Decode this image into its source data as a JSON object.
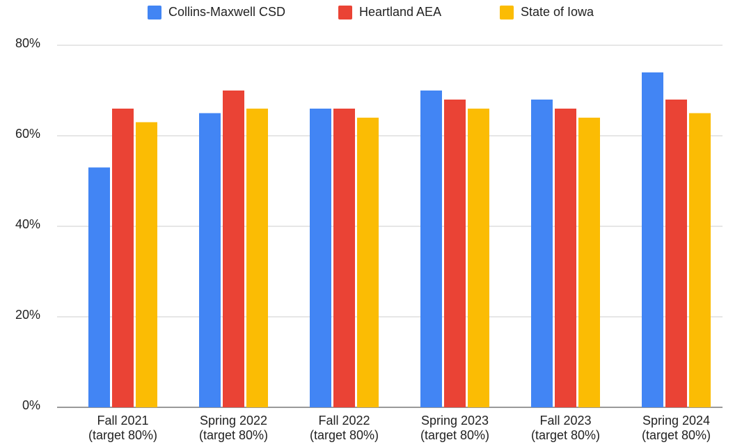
{
  "chart_data": {
    "type": "bar",
    "categories": [
      "Fall 2021\n(target 80%)",
      "Spring 2022\n(target 80%)",
      "Fall 2022\n(target 80%)",
      "Spring 2023\n(target 80%)",
      "Fall 2023\n(target 80%)",
      "Spring 2024\n(target 80%)"
    ],
    "series": [
      {
        "name": "Collins-Maxwell CSD",
        "color": "#4285f4",
        "values": [
          53,
          65,
          66,
          70,
          68,
          74
        ]
      },
      {
        "name": "Heartland AEA",
        "color": "#ea4335",
        "values": [
          66,
          70,
          66,
          68,
          66,
          68
        ]
      },
      {
        "name": "State of Iowa",
        "color": "#fbbc04",
        "values": [
          63,
          66,
          64,
          66,
          64,
          65
        ]
      }
    ],
    "ylim": [
      0,
      80
    ],
    "yticks": [
      {
        "value": 0,
        "label": "0%"
      },
      {
        "value": 20,
        "label": "20%"
      },
      {
        "value": 40,
        "label": "40%"
      },
      {
        "value": 60,
        "label": "60%"
      },
      {
        "value": 80,
        "label": "80%"
      }
    ],
    "grid": true,
    "legend": "top"
  }
}
